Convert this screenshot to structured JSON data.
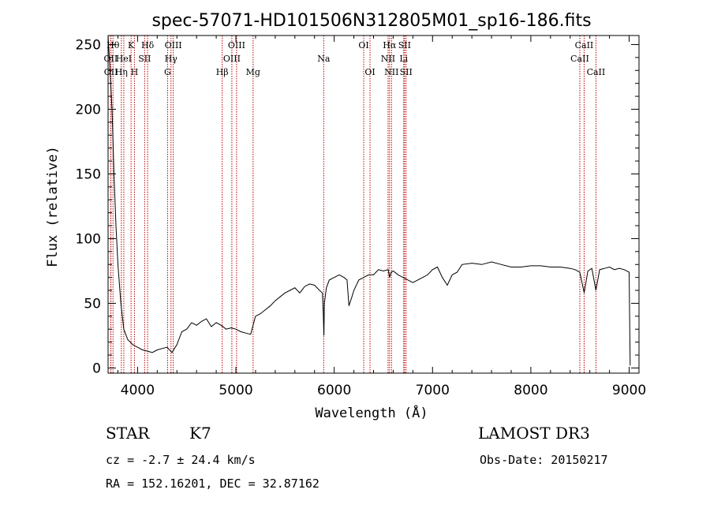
{
  "chart_data": {
    "type": "line",
    "title": "spec-57071-HD101506N312805M01_sp16-186.fits",
    "xlabel": "Wavelength (Å)",
    "ylabel": "Flux (relative)",
    "xlim": [
      3700,
      9100
    ],
    "ylim": [
      -4,
      257
    ],
    "xticks": [
      4000,
      5000,
      6000,
      7000,
      8000,
      9000
    ],
    "yticks": [
      0,
      50,
      100,
      150,
      200,
      250
    ],
    "series": [
      {
        "name": "spectrum",
        "x": [
          3700,
          3720,
          3740,
          3760,
          3780,
          3800,
          3830,
          3860,
          3900,
          3950,
          4000,
          4050,
          4100,
          4150,
          4200,
          4250,
          4300,
          4350,
          4400,
          4450,
          4500,
          4550,
          4600,
          4650,
          4700,
          4750,
          4800,
          4850,
          4900,
          4950,
          5000,
          5050,
          5100,
          5150,
          5200,
          5250,
          5300,
          5350,
          5400,
          5450,
          5500,
          5550,
          5600,
          5650,
          5700,
          5750,
          5800,
          5850,
          5880,
          5890,
          5895,
          5900,
          5920,
          5950,
          6000,
          6050,
          6100,
          6130,
          6150,
          6180,
          6200,
          6250,
          6300,
          6350,
          6400,
          6450,
          6500,
          6550,
          6563,
          6580,
          6600,
          6650,
          6700,
          6750,
          6800,
          6850,
          6900,
          6950,
          7000,
          7050,
          7100,
          7150,
          7200,
          7250,
          7300,
          7400,
          7500,
          7600,
          7700,
          7800,
          7900,
          8000,
          8100,
          8200,
          8300,
          8400,
          8450,
          8498,
          8542,
          8580,
          8620,
          8662,
          8700,
          8750,
          8800,
          8850,
          8900,
          8950,
          9000,
          9010
        ],
        "values": [
          257,
          230,
          200,
          150,
          110,
          80,
          50,
          30,
          22,
          18,
          16,
          14,
          13,
          12,
          14,
          15,
          16,
          12,
          18,
          28,
          30,
          35,
          33,
          36,
          38,
          32,
          35,
          33,
          30,
          31,
          30,
          28,
          27,
          26,
          40,
          42,
          45,
          48,
          52,
          55,
          58,
          60,
          62,
          58,
          63,
          65,
          64,
          60,
          58,
          40,
          25,
          50,
          62,
          68,
          70,
          72,
          70,
          68,
          48,
          55,
          60,
          68,
          70,
          72,
          72,
          76,
          75,
          76,
          70,
          74,
          75,
          72,
          70,
          68,
          66,
          68,
          70,
          72,
          76,
          78,
          70,
          64,
          72,
          74,
          80,
          81,
          80,
          82,
          80,
          78,
          78,
          79,
          79,
          78,
          78,
          77,
          76,
          74,
          58,
          75,
          77,
          60,
          76,
          77,
          78,
          76,
          77,
          76,
          74,
          2
        ]
      }
    ],
    "annotations": [
      {
        "label": "OII",
        "x": 3727,
        "row": 2
      },
      {
        "label": "OII",
        "x": 3729,
        "row": 3
      },
      {
        "label": "Hθ",
        "x": 3750,
        "row": 1
      },
      {
        "label": "Hη",
        "x": 3835,
        "row": 3
      },
      {
        "label": "HeI",
        "x": 3860,
        "row": 2
      },
      {
        "label": "K",
        "x": 3934,
        "row": 1
      },
      {
        "label": "H",
        "x": 3968,
        "row": 3
      },
      {
        "label": "SII",
        "x": 4072,
        "row": 2
      },
      {
        "label": "Hδ",
        "x": 4102,
        "row": 1
      },
      {
        "label": "G",
        "x": 4305,
        "row": 3
      },
      {
        "label": "Hγ",
        "x": 4340,
        "row": 2
      },
      {
        "label": "OIII",
        "x": 4363,
        "row": 1
      },
      {
        "label": "Hβ",
        "x": 4861,
        "row": 3
      },
      {
        "label": "OIII",
        "x": 4959,
        "row": 2
      },
      {
        "label": "OIII",
        "x": 5007,
        "row": 1
      },
      {
        "label": "Mg",
        "x": 5175,
        "row": 3
      },
      {
        "label": "Na",
        "x": 5893,
        "row": 2
      },
      {
        "label": "OI",
        "x": 6300,
        "row": 1
      },
      {
        "label": "OI",
        "x": 6364,
        "row": 3
      },
      {
        "label": "NII",
        "x": 6548,
        "row": 2
      },
      {
        "label": "Hα",
        "x": 6563,
        "row": 1
      },
      {
        "label": "NII",
        "x": 6583,
        "row": 3
      },
      {
        "label": "Li",
        "x": 6707,
        "row": 2
      },
      {
        "label": "SII",
        "x": 6716,
        "row": 1
      },
      {
        "label": "SII",
        "x": 6731,
        "row": 3
      },
      {
        "label": "CaII",
        "x": 8498,
        "row": 2
      },
      {
        "label": "CaII",
        "x": 8542,
        "row": 1
      },
      {
        "label": "CaII",
        "x": 8662,
        "row": 3
      }
    ]
  },
  "info": {
    "class": "STAR",
    "subclass": "K7",
    "survey": "LAMOST DR3",
    "cz": "cz = -2.7 ± 24.4 km/s",
    "obs_date": "Obs-Date: 20150217",
    "coords": "RA = 152.16201, DEC =  32.87162"
  }
}
